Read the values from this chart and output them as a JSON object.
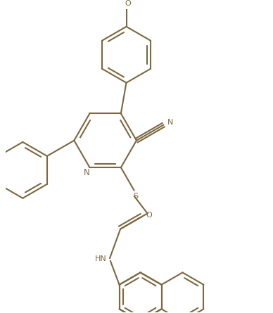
{
  "bg_color": "#FFFFFF",
  "bond_color": "#7B6840",
  "line_width": 1.5,
  "font_size": 8.0,
  "fig_width": 3.88,
  "fig_height": 4.45,
  "dpi": 100,
  "xlim": [
    -3.2,
    5.2
  ],
  "ylim": [
    -5.5,
    4.2
  ]
}
